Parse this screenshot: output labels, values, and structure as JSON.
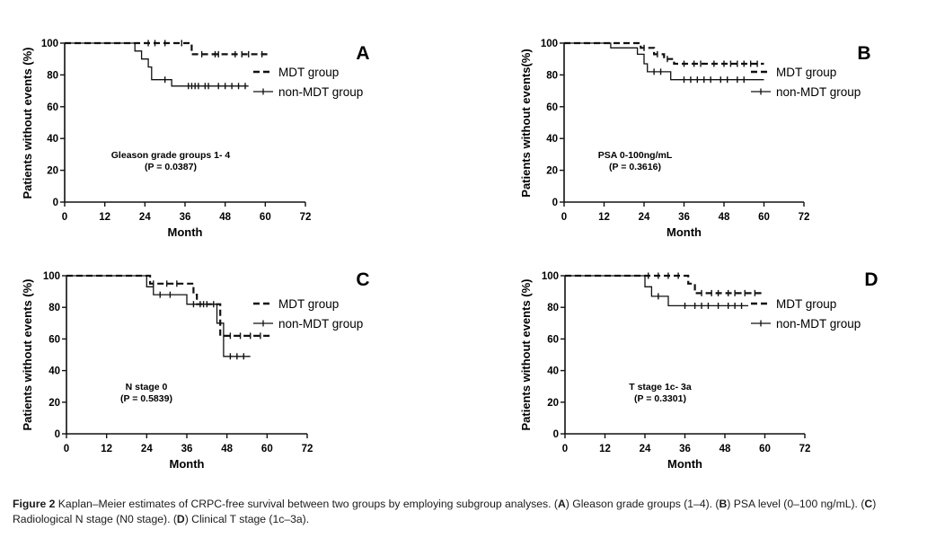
{
  "chart_data": [
    {
      "type": "line",
      "panel_label": "A",
      "xlabel": "Month",
      "ylabel": "Patients without events (%)",
      "xlim": [
        0,
        72
      ],
      "ylim": [
        0,
        100
      ],
      "xticks": [
        "0",
        "12",
        "24",
        "36",
        "48",
        "60",
        "72"
      ],
      "yticks": [
        "0",
        "20",
        "40",
        "60",
        "80",
        "100"
      ],
      "annotation": [
        "Gleason grade groups 1- 4",
        "(P = 0.0387)"
      ],
      "legend": [
        "MDT group",
        "non-MDT group"
      ],
      "series": [
        {
          "name": "MDT group",
          "style": "dashed",
          "steps": [
            [
              0,
              100
            ],
            [
              38,
              100
            ],
            [
              38,
              93
            ],
            [
              61,
              93
            ]
          ],
          "censors": [
            [
              25,
              100
            ],
            [
              27,
              100
            ],
            [
              30,
              100
            ],
            [
              35,
              100
            ],
            [
              41,
              93
            ],
            [
              45,
              93
            ],
            [
              46,
              93
            ],
            [
              51,
              93
            ],
            [
              53,
              93
            ],
            [
              55,
              93
            ],
            [
              59,
              93
            ]
          ]
        },
        {
          "name": "non-MDT group",
          "style": "solid",
          "steps": [
            [
              0,
              100
            ],
            [
              21,
              100
            ],
            [
              21,
              95
            ],
            [
              23,
              95
            ],
            [
              23,
              90
            ],
            [
              25,
              90
            ],
            [
              25,
              85
            ],
            [
              26,
              85
            ],
            [
              26,
              77
            ],
            [
              32,
              77
            ],
            [
              32,
              73
            ],
            [
              55,
              73
            ]
          ],
          "censors": [
            [
              30,
              77
            ],
            [
              37,
              73
            ],
            [
              38,
              73
            ],
            [
              39,
              73
            ],
            [
              40,
              73
            ],
            [
              42,
              73
            ],
            [
              43,
              73
            ],
            [
              46,
              73
            ],
            [
              48,
              73
            ],
            [
              50,
              73
            ],
            [
              52,
              73
            ],
            [
              54,
              73
            ]
          ]
        }
      ]
    },
    {
      "type": "line",
      "panel_label": "B",
      "xlabel": "Month",
      "ylabel": "Patients without events(%)",
      "xlim": [
        0,
        72
      ],
      "ylim": [
        0,
        100
      ],
      "xticks": [
        "0",
        "12",
        "24",
        "36",
        "48",
        "60",
        "72"
      ],
      "yticks": [
        "0",
        "20",
        "40",
        "60",
        "80",
        "100"
      ],
      "annotation": [
        "PSA 0-100ng/mL",
        "(P = 0.3616)"
      ],
      "legend": [
        "MDT group",
        "non-MDT group"
      ],
      "series": [
        {
          "name": "MDT group",
          "style": "dashed",
          "steps": [
            [
              0,
              100
            ],
            [
              23,
              100
            ],
            [
              23,
              97
            ],
            [
              27,
              97
            ],
            [
              27,
              93
            ],
            [
              30,
              93
            ],
            [
              30,
              90
            ],
            [
              33,
              90
            ],
            [
              33,
              87
            ],
            [
              60,
              87
            ]
          ],
          "censors": [
            [
              24,
              97
            ],
            [
              28,
              93
            ],
            [
              31,
              90
            ],
            [
              36,
              87
            ],
            [
              39,
              87
            ],
            [
              41,
              87
            ],
            [
              45,
              87
            ],
            [
              48,
              87
            ],
            [
              50,
              87
            ],
            [
              52,
              87
            ],
            [
              54,
              87
            ],
            [
              56,
              87
            ],
            [
              58,
              87
            ]
          ]
        },
        {
          "name": "non-MDT group",
          "style": "solid",
          "steps": [
            [
              0,
              100
            ],
            [
              14,
              100
            ],
            [
              14,
              97
            ],
            [
              22,
              97
            ],
            [
              22,
              93
            ],
            [
              24,
              93
            ],
            [
              24,
              87
            ],
            [
              25,
              87
            ],
            [
              25,
              82
            ],
            [
              32,
              82
            ],
            [
              32,
              77
            ],
            [
              60,
              77
            ]
          ],
          "censors": [
            [
              27,
              82
            ],
            [
              29,
              82
            ],
            [
              36,
              77
            ],
            [
              38,
              77
            ],
            [
              40,
              77
            ],
            [
              42,
              77
            ],
            [
              44,
              77
            ],
            [
              47,
              77
            ],
            [
              49,
              77
            ],
            [
              52,
              77
            ],
            [
              54,
              77
            ]
          ]
        }
      ]
    },
    {
      "type": "line",
      "panel_label": "C",
      "xlabel": "Month",
      "ylabel": "Patients without events (%)",
      "xlim": [
        0,
        72
      ],
      "ylim": [
        0,
        100
      ],
      "xticks": [
        "0",
        "12",
        "24",
        "36",
        "48",
        "60",
        "72"
      ],
      "yticks": [
        "0",
        "20",
        "40",
        "60",
        "80",
        "100"
      ],
      "annotation": [
        "N stage 0",
        "(P = 0.5839)"
      ],
      "legend": [
        "MDT group",
        "non-MDT group"
      ],
      "series": [
        {
          "name": "MDT group",
          "style": "dashed",
          "steps": [
            [
              0,
              100
            ],
            [
              25,
              100
            ],
            [
              25,
              95
            ],
            [
              38,
              95
            ],
            [
              38,
              88
            ],
            [
              39,
              88
            ],
            [
              39,
              82
            ],
            [
              46,
              82
            ],
            [
              46,
              62
            ],
            [
              61,
              62
            ]
          ],
          "censors": [
            [
              26,
              95
            ],
            [
              30,
              95
            ],
            [
              33,
              95
            ],
            [
              40,
              82
            ],
            [
              42,
              82
            ],
            [
              49,
              62
            ],
            [
              52,
              62
            ],
            [
              55,
              62
            ],
            [
              58,
              62
            ]
          ]
        },
        {
          "name": "non-MDT group",
          "style": "solid",
          "steps": [
            [
              0,
              100
            ],
            [
              24,
              100
            ],
            [
              24,
              93
            ],
            [
              26,
              93
            ],
            [
              26,
              88
            ],
            [
              36,
              88
            ],
            [
              36,
              82
            ],
            [
              45,
              82
            ],
            [
              45,
              70
            ],
            [
              47,
              70
            ],
            [
              47,
              49
            ],
            [
              55,
              49
            ]
          ],
          "censors": [
            [
              28,
              88
            ],
            [
              31,
              88
            ],
            [
              38,
              82
            ],
            [
              41,
              82
            ],
            [
              44,
              82
            ],
            [
              49,
              49
            ],
            [
              51,
              49
            ],
            [
              53,
              49
            ]
          ]
        }
      ]
    },
    {
      "type": "line",
      "panel_label": "D",
      "xlabel": "Month",
      "ylabel": "Patients without events (%)",
      "xlim": [
        0,
        72
      ],
      "ylim": [
        0,
        100
      ],
      "xticks": [
        "0",
        "12",
        "24",
        "36",
        "48",
        "60",
        "72"
      ],
      "yticks": [
        "0",
        "20",
        "40",
        "60",
        "80",
        "100"
      ],
      "annotation": [
        "T stage 1c- 3a",
        "(P = 0.3301)"
      ],
      "legend": [
        "MDT group",
        "non-MDT group"
      ],
      "series": [
        {
          "name": "MDT group",
          "style": "dashed",
          "steps": [
            [
              0,
              100
            ],
            [
              37,
              100
            ],
            [
              37,
              95
            ],
            [
              39,
              95
            ],
            [
              39,
              89
            ],
            [
              60,
              89
            ]
          ],
          "censors": [
            [
              25,
              100
            ],
            [
              28,
              100
            ],
            [
              31,
              100
            ],
            [
              34,
              100
            ],
            [
              41,
              89
            ],
            [
              44,
              89
            ],
            [
              46,
              89
            ],
            [
              49,
              89
            ],
            [
              51,
              89
            ],
            [
              54,
              89
            ],
            [
              57,
              89
            ]
          ]
        },
        {
          "name": "non-MDT group",
          "style": "solid",
          "steps": [
            [
              0,
              100
            ],
            [
              24,
              100
            ],
            [
              24,
              93
            ],
            [
              26,
              93
            ],
            [
              26,
              87
            ],
            [
              31,
              87
            ],
            [
              31,
              81
            ],
            [
              55,
              81
            ]
          ],
          "censors": [
            [
              28,
              87
            ],
            [
              36,
              81
            ],
            [
              39,
              81
            ],
            [
              41,
              81
            ],
            [
              43,
              81
            ],
            [
              46,
              81
            ],
            [
              49,
              81
            ],
            [
              51,
              81
            ],
            [
              53,
              81
            ]
          ]
        }
      ]
    }
  ],
  "caption": {
    "figure_label": "Figure 2",
    "parts": [
      {
        "t": "Kaplan–Meier estimates of CRPC-free survival between two groups by employing subgroup analyses. (",
        "b": false
      },
      {
        "t": "A",
        "b": true
      },
      {
        "t": ") Gleason grade groups (1–4). (",
        "b": false
      },
      {
        "t": "B",
        "b": true
      },
      {
        "t": ") PSA level (0–100 ng/mL). (",
        "b": false
      },
      {
        "t": "C",
        "b": true
      },
      {
        "t": ") Radiological N stage (N0 stage). (",
        "b": false
      },
      {
        "t": "D",
        "b": true
      },
      {
        "t": ") Clinical T stage (1c–3a).",
        "b": false
      }
    ]
  }
}
